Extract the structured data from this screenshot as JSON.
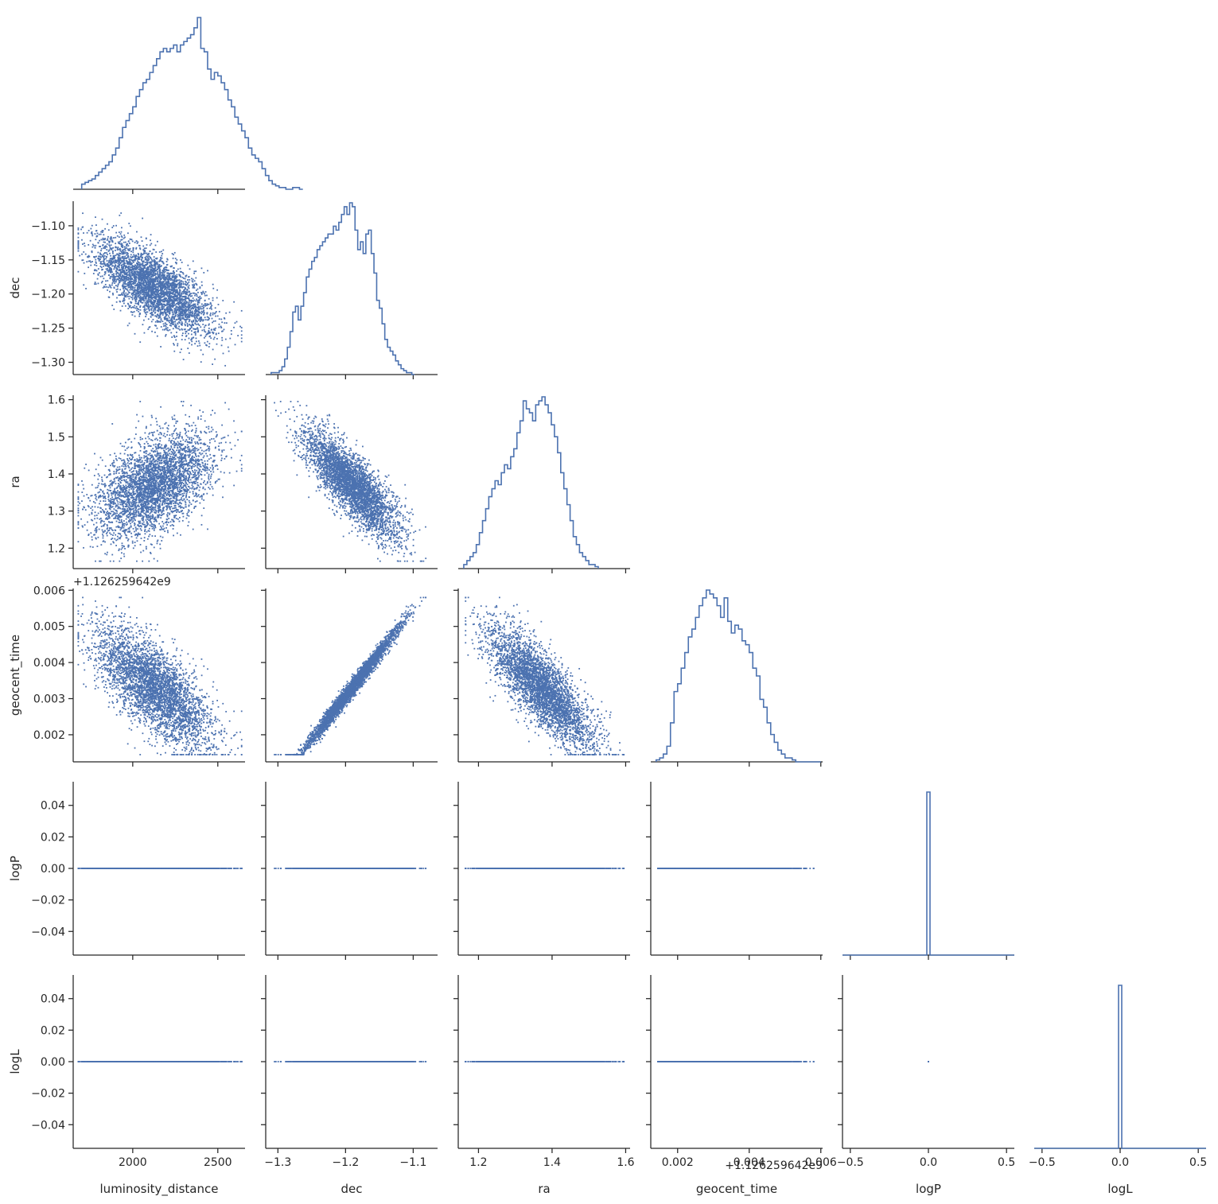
{
  "chart_data": {
    "type": "scatter",
    "variables": [
      {
        "key": "luminosity_distance",
        "label": "luminosity_distance",
        "range": [
          1650,
          2660
        ],
        "ticks": [
          {
            "v": 2000,
            "t": "2000"
          },
          {
            "v": 2500,
            "t": "2500"
          }
        ],
        "offset_text": ""
      },
      {
        "key": "dec",
        "label": "dec",
        "range": [
          -1.318,
          -1.064
        ],
        "ticks": [
          {
            "v": -1.3,
            "t": "−1.3"
          },
          {
            "v": -1.2,
            "t": "−1.2"
          },
          {
            "v": -1.1,
            "t": "−1.1"
          }
        ],
        "yticks": [
          {
            "v": -1.1,
            "t": "−1.10"
          },
          {
            "v": -1.15,
            "t": "−1.15"
          },
          {
            "v": -1.2,
            "t": "−1.20"
          },
          {
            "v": -1.25,
            "t": "−1.25"
          },
          {
            "v": -1.3,
            "t": "−1.30"
          }
        ],
        "offset_text": ""
      },
      {
        "key": "ra",
        "label": "ra",
        "range": [
          1.145,
          1.612
        ],
        "ticks": [
          {
            "v": 1.2,
            "t": "1.2"
          },
          {
            "v": 1.4,
            "t": "1.4"
          },
          {
            "v": 1.6,
            "t": "1.6"
          }
        ],
        "yticks": [
          {
            "v": 1.2,
            "t": "1.2"
          },
          {
            "v": 1.3,
            "t": "1.3"
          },
          {
            "v": 1.4,
            "t": "1.4"
          },
          {
            "v": 1.5,
            "t": "1.5"
          },
          {
            "v": 1.6,
            "t": "1.6"
          }
        ],
        "offset_text": ""
      },
      {
        "key": "geocent_time",
        "label": "geocent_time",
        "range": [
          0.00125,
          0.00605
        ],
        "ticks": [
          {
            "v": 0.002,
            "t": "0.002"
          },
          {
            "v": 0.004,
            "t": "0.004"
          },
          {
            "v": 0.006,
            "t": "0.006"
          }
        ],
        "yticks": [
          {
            "v": 0.002,
            "t": "0.002"
          },
          {
            "v": 0.003,
            "t": "0.003"
          },
          {
            "v": 0.004,
            "t": "0.004"
          },
          {
            "v": 0.005,
            "t": "0.005"
          },
          {
            "v": 0.006,
            "t": "0.006"
          }
        ],
        "offset_text": "+1.126259642e9"
      },
      {
        "key": "logP",
        "label": "logP",
        "range": [
          -0.055,
          0.055
        ],
        "ticks": [
          {
            "v": -0.5,
            "t": "−0.5"
          },
          {
            "v": 0.0,
            "t": "0.0"
          },
          {
            "v": 0.5,
            "t": "0.5"
          }
        ],
        "yticks": [
          {
            "v": 0.04,
            "t": "0.04"
          },
          {
            "v": 0.02,
            "t": "0.02"
          },
          {
            "v": 0.0,
            "t": "0.00"
          },
          {
            "v": -0.02,
            "t": "−0.02"
          },
          {
            "v": -0.04,
            "t": "−0.04"
          }
        ],
        "offset_text": ""
      },
      {
        "key": "logL",
        "label": "logL",
        "range": [
          -0.055,
          0.055
        ],
        "ticks": [
          {
            "v": -0.5,
            "t": "−0.5"
          },
          {
            "v": 0.0,
            "t": "0.0"
          },
          {
            "v": 0.5,
            "t": "0.5"
          }
        ],
        "yticks": [
          {
            "v": 0.04,
            "t": "0.04"
          },
          {
            "v": 0.02,
            "t": "0.02"
          },
          {
            "v": 0.0,
            "t": "0.00"
          },
          {
            "v": -0.02,
            "t": "−0.02"
          },
          {
            "v": -0.04,
            "t": "−0.04"
          }
        ],
        "offset_text": ""
      }
    ],
    "diagonal_xrange_for_constant": [
      -0.55,
      0.55
    ],
    "histograms": {
      "luminosity_distance": {
        "bin_start": 1700,
        "bin_width": 20,
        "counts": [
          3,
          4,
          5,
          6,
          8,
          10,
          12,
          14,
          16,
          20,
          24,
          30,
          36,
          40,
          44,
          48,
          54,
          58,
          62,
          64,
          68,
          72,
          76,
          80,
          82,
          80,
          82,
          84,
          80,
          84,
          86,
          88,
          90,
          94,
          100,
          82,
          80,
          70,
          64,
          68,
          66,
          62,
          58,
          52,
          48,
          42,
          38,
          34,
          30,
          24,
          20,
          18,
          16,
          12,
          8,
          5,
          3,
          2,
          1,
          1,
          0,
          0,
          1,
          1,
          0
        ]
      },
      "dec": {
        "bin_start": -1.31,
        "bin_width": 0.004,
        "counts": [
          1,
          1,
          1,
          2,
          4,
          8,
          14,
          22,
          32,
          35,
          28,
          35,
          42,
          50,
          54,
          58,
          60,
          64,
          66,
          68,
          70,
          72,
          72,
          76,
          74,
          78,
          82,
          86,
          82,
          88,
          86,
          74,
          64,
          68,
          62,
          72,
          74,
          62,
          52,
          38,
          34,
          26,
          18,
          14,
          12,
          10,
          7,
          5,
          3,
          2,
          1,
          1,
          0
        ]
      },
      "ra": {
        "bin_start": 1.16,
        "bin_width": 0.0085,
        "counts": [
          2,
          4,
          6,
          8,
          12,
          18,
          24,
          30,
          36,
          40,
          44,
          42,
          48,
          52,
          50,
          56,
          60,
          68,
          74,
          84,
          80,
          78,
          74,
          82,
          84,
          86,
          82,
          78,
          72,
          66,
          58,
          48,
          40,
          32,
          24,
          16,
          12,
          8,
          6,
          4,
          2,
          2,
          1
        ]
      },
      "geocent_time": {
        "bin_start": 0.0014,
        "bin_width": 0.0001,
        "counts": [
          1,
          2,
          4,
          8,
          20,
          36,
          40,
          48,
          56,
          64,
          68,
          74,
          80,
          84,
          88,
          86,
          84,
          80,
          74,
          84,
          72,
          66,
          70,
          68,
          62,
          60,
          56,
          48,
          44,
          32,
          28,
          20,
          14,
          10,
          6,
          4,
          2,
          2,
          1,
          0,
          0,
          0,
          0,
          0,
          0,
          0
        ]
      },
      "logP": {
        "constant": 0.0
      },
      "logL": {
        "constant": 0.0
      }
    }
  }
}
